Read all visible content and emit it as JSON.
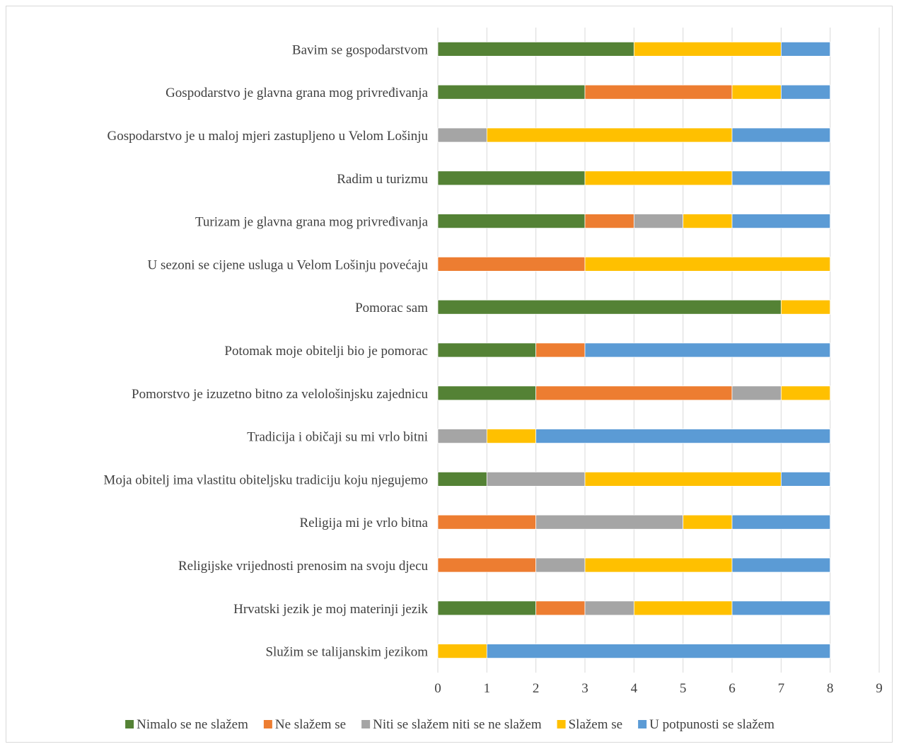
{
  "chart_data": {
    "type": "bar",
    "orientation": "horizontal",
    "stacked": true,
    "title": "",
    "xlabel": "",
    "ylabel": "",
    "xlim": [
      0,
      9
    ],
    "x_ticks": [
      "0",
      "1",
      "2",
      "3",
      "4",
      "5",
      "6",
      "7",
      "8",
      "9"
    ],
    "grid": "vertical major gridlines",
    "legend_position": "bottom",
    "categories": [
      "Bavim se gospodarstvom",
      "Gospodarstvo je glavna grana mog privređivanja",
      "Gospodarstvo je u maloj mjeri zastupljeno u Velom Lošinju",
      "Radim u turizmu",
      "Turizam je glavna grana mog privređivanja",
      "U sezoni se cijene usluga u Velom Lošinju povećaju",
      "Pomorac sam",
      "Potomak moje obitelji bio je pomorac",
      "Pomorstvo je izuzetno bitno za velološinjsku zajednicu",
      "Tradicija i običaji su mi vrlo bitni",
      "Moja obitelj ima vlastitu obiteljsku tradiciju koju njegujemo",
      "Religija mi je vrlo bitna",
      "Religijske vrijednosti prenosim na svoju djecu",
      "Hrvatski jezik je moj materinji jezik",
      "Služim se talijanskim jezikom"
    ],
    "series": [
      {
        "name": "Nimalo se ne slažem",
        "color": "#548235",
        "values": [
          4,
          3,
          0,
          3,
          3,
          0,
          7,
          2,
          2,
          0,
          1,
          0,
          0,
          2,
          0
        ]
      },
      {
        "name": "Ne slažem se",
        "color": "#ED7D31",
        "values": [
          0,
          3,
          0,
          0,
          1,
          3,
          0,
          1,
          4,
          0,
          0,
          2,
          2,
          1,
          0
        ]
      },
      {
        "name": "Niti se slažem niti se ne slažem",
        "color": "#A5A5A5",
        "values": [
          0,
          0,
          1,
          0,
          1,
          0,
          0,
          0,
          1,
          1,
          2,
          3,
          1,
          1,
          0
        ]
      },
      {
        "name": "Slažem se",
        "color": "#FFC000",
        "values": [
          3,
          1,
          5,
          3,
          1,
          5,
          1,
          0,
          1,
          1,
          4,
          1,
          3,
          2,
          1
        ]
      },
      {
        "name": "U potpunosti se slažem",
        "color": "#5B9BD5",
        "values": [
          1,
          1,
          2,
          2,
          2,
          0,
          0,
          5,
          0,
          6,
          1,
          2,
          2,
          2,
          7
        ]
      }
    ]
  }
}
